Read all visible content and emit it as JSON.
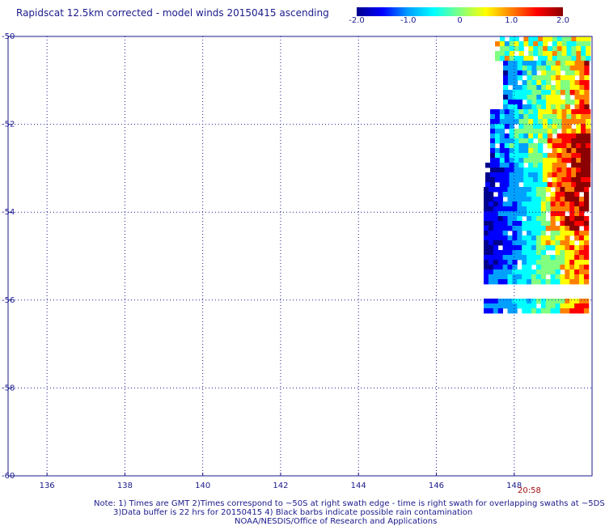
{
  "title": "Rapidscat 12.5km corrected - model winds 20150415 ascending",
  "colorbar": {
    "labels": [
      "-2.0",
      "-1.0",
      "0",
      "1.0",
      "2.0"
    ],
    "range": [
      -2.0,
      2.0
    ],
    "colors": [
      "#00008c",
      "#0000ff",
      "#00a0ff",
      "#00ffff",
      "#80ff80",
      "#ffff00",
      "#ff8000",
      "#ff0000",
      "#8b0000"
    ]
  },
  "map": {
    "lat_labels": [
      "-50",
      "-52",
      "-54",
      "-56",
      "-58",
      "-60"
    ],
    "lat_values": [
      -50,
      -52,
      -54,
      -56,
      -58,
      -60
    ],
    "lon_labels": [
      "136",
      "138",
      "140",
      "142",
      "144",
      "146",
      "148"
    ],
    "lon_values": [
      136,
      138,
      140,
      142,
      144,
      146,
      148
    ],
    "lon_range": [
      135,
      150
    ],
    "lat_range": [
      -50,
      -60
    ],
    "grid_color": "#1a1a8c",
    "time_label": "20:58"
  },
  "notes": {
    "line1": "Note: 1) Times are GMT 2)Times correspond to ~50S at right swath edge - time is right swath for overlapping swaths at ~5DS",
    "line2": "3)Data buffer is 22 hrs for 20150415 4) Black barbs indicate possible rain contamination",
    "line3": "NOAA/NESDIS/Office of Research and Applications"
  }
}
